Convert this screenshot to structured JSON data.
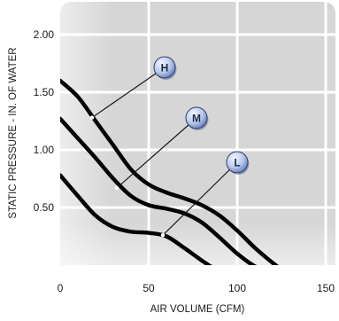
{
  "chart_data": {
    "type": "line",
    "xlabel": "AIR VOLUME (CFM)",
    "ylabel": "STATIC PRESSURE - IN. OF WATER",
    "xlim": [
      0,
      150
    ],
    "ylim": [
      0,
      2.3
    ],
    "x_ticks": [
      "0",
      "50",
      "100",
      "150"
    ],
    "x_tick_values": [
      0,
      50,
      100,
      150
    ],
    "y_ticks": [
      "0.50",
      "1.00",
      "1.50",
      "2.00"
    ],
    "y_tick_values": [
      0.5,
      1.0,
      1.5,
      2.0
    ],
    "grid": true,
    "series": [
      {
        "name": "H",
        "x": [
          0,
          10,
          20,
          30,
          40,
          50,
          60,
          70,
          80,
          90,
          100,
          110,
          120,
          126
        ],
        "y": [
          1.6,
          1.46,
          1.25,
          1.04,
          0.83,
          0.7,
          0.63,
          0.58,
          0.52,
          0.43,
          0.3,
          0.15,
          0.02,
          -0.05
        ]
      },
      {
        "name": "M",
        "x": [
          0,
          10,
          20,
          30,
          40,
          50,
          60,
          70,
          80,
          90,
          100,
          110,
          118
        ],
        "y": [
          1.27,
          1.1,
          0.93,
          0.75,
          0.6,
          0.52,
          0.49,
          0.45,
          0.37,
          0.24,
          0.1,
          -0.01,
          -0.05
        ]
      },
      {
        "name": "L",
        "x": [
          0,
          10,
          20,
          30,
          40,
          50,
          60,
          70,
          80,
          87,
          90
        ],
        "y": [
          0.78,
          0.6,
          0.43,
          0.33,
          0.29,
          0.28,
          0.25,
          0.15,
          0.04,
          -0.03,
          -0.05
        ]
      }
    ],
    "callouts": [
      {
        "series": "H",
        "label": "H",
        "anchor": [
          18,
          1.28
        ]
      },
      {
        "series": "M",
        "label": "M",
        "anchor": [
          32,
          0.67
        ]
      },
      {
        "series": "L",
        "label": "L",
        "anchor": [
          58,
          0.26
        ]
      }
    ]
  },
  "colors": {
    "plot_background": "#d6d6d6",
    "gridline": "#ffffff",
    "curve": "#000000",
    "leader_line": "#1a1a1a",
    "badge_light": "#f2f6ff",
    "badge_dark": "#4f6fb6"
  }
}
